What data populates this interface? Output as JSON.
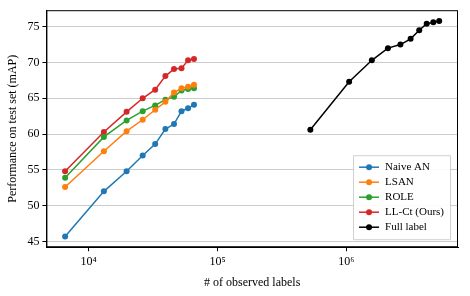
{
  "chart_data": {
    "type": "line",
    "x_label": "# of observed labels",
    "y_label": "Performance on test set (mAP)",
    "log": "x",
    "grid": "y",
    "legend": "lower right",
    "xlim": [
      4700,
      7350000
    ],
    "xticks": [
      {
        "value": 10000,
        "label": "10⁴"
      },
      {
        "value": 100000,
        "label": "10⁵"
      },
      {
        "value": 1000000,
        "label": "10⁶"
      }
    ],
    "ylim": [
      44.2,
      77.3
    ],
    "yticks": [
      45,
      50,
      55,
      60,
      65,
      70,
      75
    ],
    "series": [
      {
        "name": "Naive AN",
        "color": "#1f77b4",
        "marker": "circle",
        "line_style": "solid",
        "x": [
          6567,
          13133,
          19700,
          26266,
          32833,
          39399,
          45966,
          52532,
          59099,
          65665
        ],
        "values": [
          45.7,
          52.0,
          54.8,
          57.0,
          58.6,
          60.7,
          61.4,
          63.2,
          63.6,
          64.1
        ]
      },
      {
        "name": "LSAN",
        "color": "#ff7f0e",
        "marker": "circle",
        "line_style": "solid",
        "x": [
          6567,
          13133,
          19700,
          26266,
          32833,
          39399,
          45966,
          52532,
          59099,
          65665
        ],
        "values": [
          52.6,
          57.6,
          60.4,
          62.0,
          63.4,
          64.5,
          65.8,
          66.4,
          66.6,
          66.9
        ]
      },
      {
        "name": "ROLE",
        "color": "#2ca02c",
        "marker": "circle",
        "line_style": "solid",
        "x": [
          6567,
          13133,
          19700,
          26266,
          32833,
          39399,
          45966,
          52532,
          59099,
          65665
        ],
        "values": [
          53.9,
          59.6,
          61.9,
          63.2,
          64.0,
          64.8,
          65.2,
          66.1,
          66.3,
          66.4
        ]
      },
      {
        "name": "LL-Ct (Ours)",
        "color": "#d62728",
        "marker": "circle",
        "line_style": "solid",
        "x": [
          6567,
          13133,
          19700,
          26266,
          32833,
          39399,
          45966,
          52532,
          59099,
          65665
        ],
        "values": [
          54.8,
          60.3,
          63.1,
          65.0,
          66.2,
          68.1,
          69.1,
          69.2,
          70.3,
          70.5
        ]
      },
      {
        "name": "Full label",
        "color": "#000000",
        "marker": "circle",
        "line_style": "solid",
        "x": [
          525320,
          1050640,
          1575960,
          2101280,
          2626600,
          3151920,
          3677240,
          4202560,
          4727880,
          5253200
        ],
        "values": [
          60.6,
          67.3,
          70.3,
          72.0,
          72.5,
          73.3,
          74.5,
          75.4,
          75.6,
          75.8
        ]
      }
    ]
  }
}
